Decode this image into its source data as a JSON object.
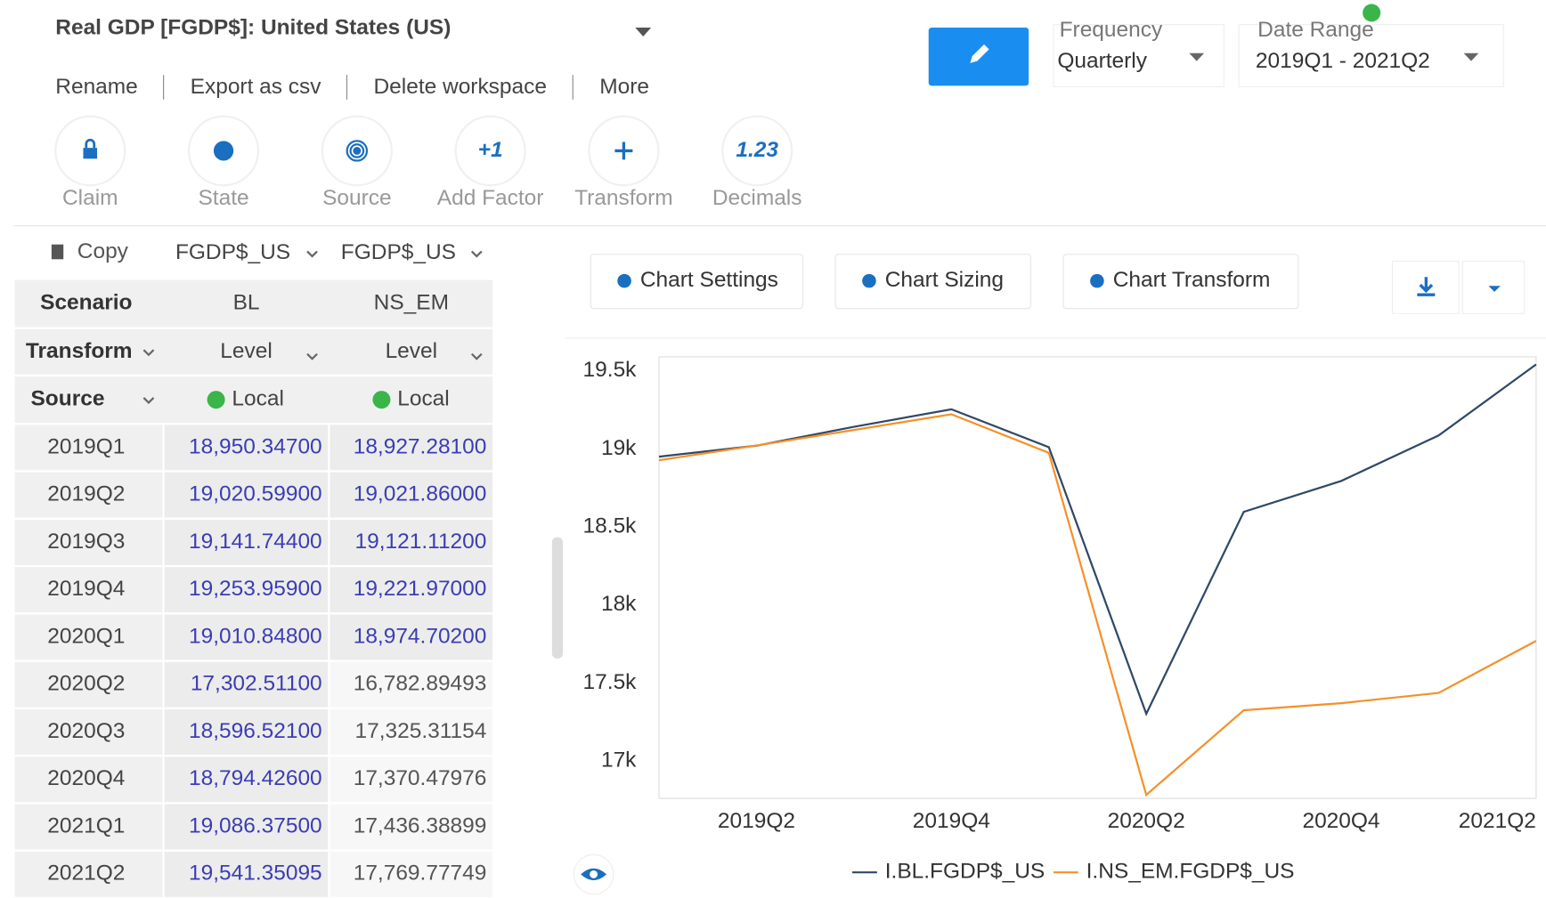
{
  "header": {
    "title": "Real GDP [FGDP$]: United States (US)",
    "menu": [
      "Rename",
      "Export as csv",
      "Delete workspace",
      "More"
    ],
    "frequency": {
      "label": "Frequency",
      "value": "Quarterly"
    },
    "date_range": {
      "label": "Date Range",
      "value": "2019Q1 - 2021Q2"
    }
  },
  "tools": [
    {
      "label": "Claim"
    },
    {
      "label": "State"
    },
    {
      "label": "Source"
    },
    {
      "label": "Add Factor",
      "icon": "+1"
    },
    {
      "label": "Transform"
    },
    {
      "label": "Decimals",
      "icon": "1.23"
    }
  ],
  "table": {
    "copy": "Copy",
    "columns": [
      "FGDP$_US",
      "FGDP$_US"
    ],
    "header_rows": [
      [
        "Scenario",
        "BL",
        "NS_EM"
      ],
      [
        "Transform",
        "Level",
        "Level"
      ],
      [
        "Source",
        "Local",
        "Local"
      ]
    ],
    "rows": [
      [
        "2019Q1",
        "18,950.34700",
        "18,927.28100"
      ],
      [
        "2019Q2",
        "19,020.59900",
        "19,021.86000"
      ],
      [
        "2019Q3",
        "19,141.74400",
        "19,121.11200"
      ],
      [
        "2019Q4",
        "19,253.95900",
        "19,221.97000"
      ],
      [
        "2020Q1",
        "19,010.84800",
        "18,974.70200"
      ],
      [
        "2020Q2",
        "17,302.51100",
        "16,782.89493"
      ],
      [
        "2020Q3",
        "18,596.52100",
        "17,325.31154"
      ],
      [
        "2020Q4",
        "18,794.42600",
        "17,370.47976"
      ],
      [
        "2021Q1",
        "19,086.37500",
        "17,436.38899"
      ],
      [
        "2021Q2",
        "19,541.35095",
        "17,769.77749"
      ]
    ]
  },
  "chart_buttons": [
    "Chart Settings",
    "Chart Sizing",
    "Chart Transform"
  ],
  "chart_data": {
    "type": "line",
    "categories": [
      null,
      "2019Q2",
      null,
      "2019Q4",
      null,
      "2020Q2",
      null,
      "2020Q4",
      null,
      "2021Q2"
    ],
    "series": [
      {
        "name": "I.BL.FGDP$_US",
        "color": "#2f4866",
        "values": [
          18950.347,
          19020.599,
          19141.744,
          19253.959,
          19010.848,
          17302.511,
          18596.521,
          18794.426,
          19086.375,
          19541.35095
        ]
      },
      {
        "name": "I.NS_EM.FGDP$_US",
        "color": "#f5902a",
        "values": [
          18927.281,
          19021.86,
          19121.112,
          19221.97,
          18974.702,
          16782.89493,
          17325.31154,
          17370.47976,
          17436.38899,
          17769.77749
        ]
      }
    ],
    "ylim": [
      16760,
      19590
    ],
    "yticks": [
      {
        "value": 17000,
        "label": "17k"
      },
      {
        "value": 17500,
        "label": "17.5k"
      },
      {
        "value": 18000,
        "label": "18k"
      },
      {
        "value": 18500,
        "label": "18.5k"
      },
      {
        "value": 19000,
        "label": "19k"
      },
      {
        "value": 19500,
        "label": "19.5k"
      }
    ],
    "legend": "bottom",
    "grid": false
  }
}
